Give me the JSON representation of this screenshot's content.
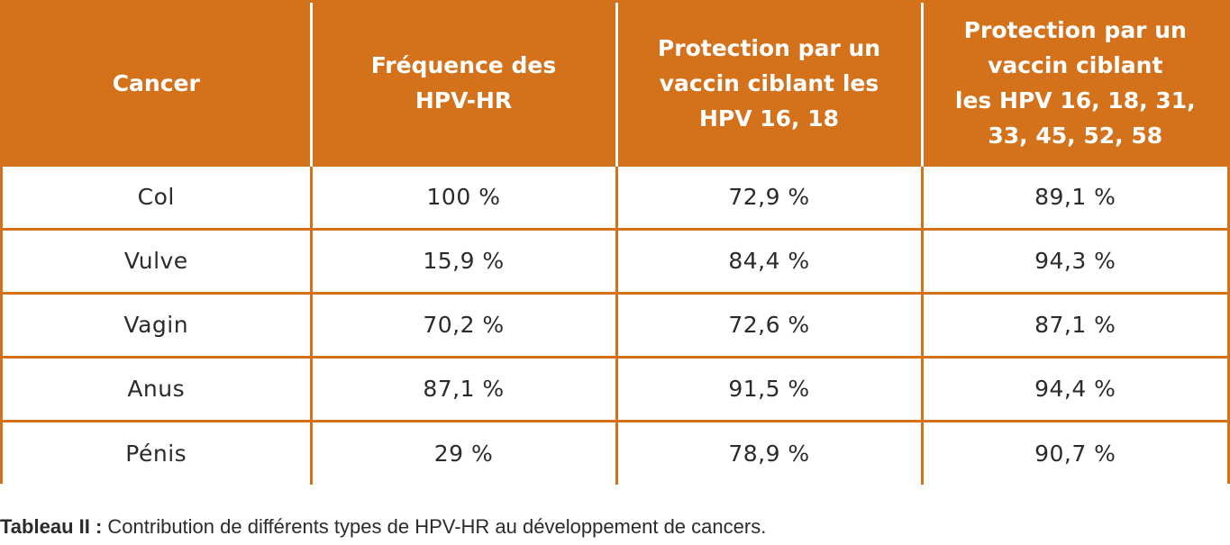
{
  "colors": {
    "header_bg": "#d4721c",
    "header_text": "#ffffff",
    "cell_text": "#2b2b2b",
    "grid": "#d4721c"
  },
  "table": {
    "headers": [
      "Cancer",
      "Fréquence des\nHPV-HR",
      "Protection par un\nvaccin ciblant les\nHPV 16, 18",
      "Protection par un\nvaccin ciblant\nles HPV 16, 18, 31,\n33, 45, 52, 58"
    ],
    "rows": [
      [
        "Col",
        "100 %",
        "72,9 %",
        "89,1 %"
      ],
      [
        "Vulve",
        "15,9 %",
        "84,4 %",
        "94,3 %"
      ],
      [
        "Vagin",
        "70,2 %",
        "72,6 %",
        "87,1 %"
      ],
      [
        "Anus",
        "87,1 %",
        "91,5 %",
        "94,4 %"
      ],
      [
        "Pénis",
        "29 %",
        "78,9 %",
        "90,7 %"
      ]
    ]
  },
  "caption": {
    "label": "Tableau II :",
    "text": " Contribution de différents types de HPV-HR au développement de cancers."
  }
}
